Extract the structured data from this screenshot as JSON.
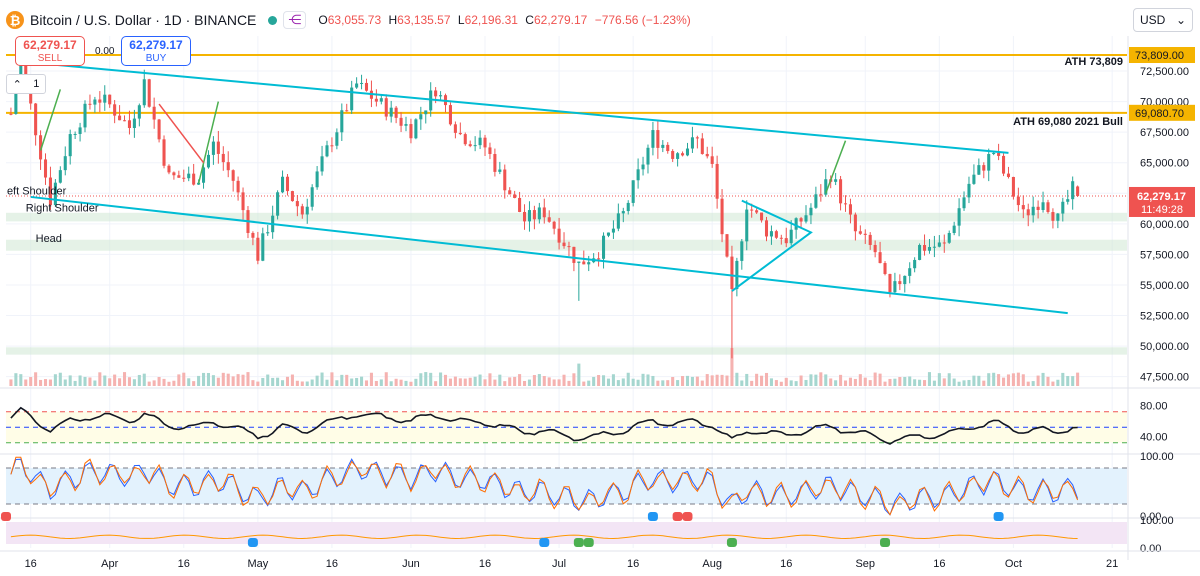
{
  "header": {
    "title": "Bitcoin / U.S. Dollar · 1D · BINANCE",
    "ohlc": [
      {
        "k": "O",
        "v": "63,055.73"
      },
      {
        "k": "H",
        "v": "63,135.57"
      },
      {
        "k": "L",
        "v": "62,196.31"
      },
      {
        "k": "C",
        "v": "62,279.17"
      }
    ],
    "change": "−776.56 (−1.23%)",
    "currency": "USD",
    "sell": {
      "price": "62,279.17",
      "label": "SELL"
    },
    "buy": {
      "price": "62,279.17",
      "label": "BUY"
    },
    "spread": "0.00",
    "layers_count": "1"
  },
  "colors": {
    "up": "#26a69a",
    "down": "#ef5350",
    "channel": "#00bcd4",
    "level": "#f5b400",
    "zone": "#cfe8d3"
  },
  "chart_data": {
    "type": "candlestick",
    "symbol": "BTCUSD",
    "timeframe": "1D",
    "price_axis": {
      "ticks": [
        47500,
        50000,
        52500,
        55000,
        57500,
        60000,
        62500,
        65000,
        67500,
        70000,
        72500
      ],
      "tick_labels": [
        "47,500.00",
        "50,000.00",
        "52,500.00",
        "55,000.00",
        "57,500.00",
        "60,000.00",
        "62,500.00",
        "65,000.00",
        "67,500.00",
        "70,000.00",
        "72,500.00"
      ],
      "range": [
        46900,
        75200
      ]
    },
    "time_axis": {
      "labels": [
        "16",
        "Apr",
        "16",
        "May",
        "16",
        "Jun",
        "16",
        "Jul",
        "16",
        "Aug",
        "16",
        "Sep",
        "16",
        "Oct",
        "21"
      ],
      "dates": [
        "2024-03-16",
        "2024-04-01",
        "2024-04-16",
        "2024-05-01",
        "2024-05-16",
        "2024-06-01",
        "2024-06-16",
        "2024-07-01",
        "2024-07-16",
        "2024-08-01",
        "2024-08-16",
        "2024-09-01",
        "2024-09-16",
        "2024-10-01",
        "2024-10-21"
      ],
      "start": "2024-03-11",
      "end": "2024-10-24"
    },
    "key_prices": [
      {
        "label": "73,809.00",
        "price": 73809,
        "text": "ATH 73,809"
      },
      {
        "label": "69,080.70",
        "price": 69080.7,
        "text": "ATH 69,080 2021 Bull"
      }
    ],
    "last_price": {
      "label": "62,279.17",
      "countdown": "11:49:28",
      "price": 62279.17
    },
    "zones": [
      [
        60200,
        60900
      ],
      [
        57800,
        58700
      ],
      [
        49300,
        49900
      ]
    ],
    "channel": {
      "upper": [
        [
          "2024-03-16",
          73200
        ],
        [
          "2024-09-30",
          65800
        ]
      ],
      "lower": [
        [
          "2024-03-16",
          62200
        ],
        [
          "2024-10-12",
          52700
        ]
      ]
    },
    "annotations": [
      "eft Shoulder",
      "Right Shoulder",
      "Head"
    ],
    "anchors": [
      [
        "2024-03-12",
        69000
      ],
      [
        "2024-03-14",
        73400
      ],
      [
        "2024-03-20",
        62000
      ],
      [
        "2024-03-24",
        67200
      ],
      [
        "2024-03-29",
        70500
      ],
      [
        "2024-04-01",
        69700
      ],
      [
        "2024-04-05",
        67900
      ],
      [
        "2024-04-08",
        71600
      ],
      [
        "2024-04-13",
        63800
      ],
      [
        "2024-04-19",
        63800
      ],
      [
        "2024-04-22",
        66500
      ],
      [
        "2024-04-26",
        63600
      ],
      [
        "2024-05-01",
        57400
      ],
      [
        "2024-05-06",
        63300
      ],
      [
        "2024-05-10",
        60900
      ],
      [
        "2024-05-15",
        66000
      ],
      [
        "2024-05-21",
        71400
      ],
      [
        "2024-05-27",
        69400
      ],
      [
        "2024-06-01",
        67700
      ],
      [
        "2024-06-06",
        71100
      ],
      [
        "2024-06-11",
        67300
      ],
      [
        "2024-06-16",
        66300
      ],
      [
        "2024-06-24",
        60300
      ],
      [
        "2024-06-28",
        61000
      ],
      [
        "2024-07-05",
        56700
      ],
      [
        "2024-07-09",
        57800
      ],
      [
        "2024-07-14",
        60800
      ],
      [
        "2024-07-20",
        67200
      ],
      [
        "2024-07-24",
        65800
      ],
      [
        "2024-07-29",
        66800
      ],
      [
        "2024-08-01",
        64600
      ],
      [
        "2024-08-05",
        54000
      ],
      [
        "2024-08-08",
        61700
      ],
      [
        "2024-08-12",
        59500
      ],
      [
        "2024-08-16",
        58800
      ],
      [
        "2024-08-21",
        61300
      ],
      [
        "2024-08-25",
        64100
      ],
      [
        "2024-08-30",
        59300
      ],
      [
        "2024-09-03",
        57700
      ],
      [
        "2024-09-06",
        54000
      ],
      [
        "2024-09-12",
        58100
      ],
      [
        "2024-09-17",
        58200
      ],
      [
        "2024-09-22",
        63300
      ],
      [
        "2024-09-27",
        65900
      ],
      [
        "2024-09-30",
        63300
      ],
      [
        "2024-10-03",
        60700
      ],
      [
        "2024-10-07",
        62200
      ],
      [
        "2024-10-10",
        60300
      ],
      [
        "2024-10-13",
        62800
      ],
      [
        "2024-10-14",
        62279
      ]
    ],
    "rsi": {
      "ticks": [
        40,
        80
      ],
      "tick_labels": [
        "40.00",
        "80.00"
      ]
    },
    "stoch": {
      "ticks": [
        0,
        100
      ],
      "tick_labels": [
        "0.00",
        "100.00"
      ]
    },
    "osc": {
      "ticks": [
        0,
        100
      ],
      "tick_labels": [
        "0.00",
        "100.00"
      ]
    }
  }
}
